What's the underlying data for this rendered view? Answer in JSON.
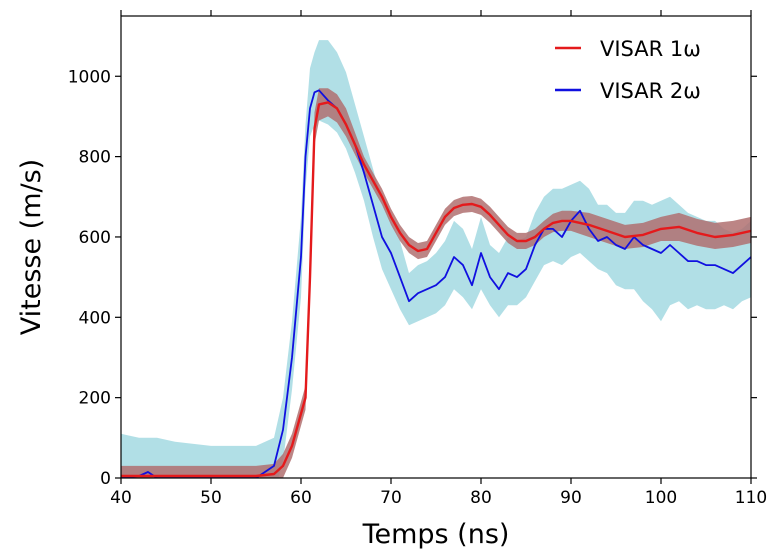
{
  "chart_data": {
    "type": "line",
    "title": "",
    "xlabel": "Temps (ns)",
    "ylabel": "Vitesse (m/s)",
    "xlim": [
      40,
      110
    ],
    "ylim": [
      0,
      1150
    ],
    "xticks": [
      40,
      50,
      60,
      70,
      80,
      90,
      100,
      110
    ],
    "yticks": [
      0,
      200,
      400,
      600,
      800,
      1000
    ],
    "grid": false,
    "legend_position": "top-right",
    "colors": {
      "visar1": "#e41a1c",
      "visar1_band": "#b07070",
      "visar2": "#1010e0",
      "visar2_band": "#a8dce3"
    },
    "series": [
      {
        "name": "VISAR 1ω",
        "color": "#e41a1c",
        "x": [
          40,
          45,
          50,
          55,
          57,
          58,
          59,
          60,
          60.5,
          61,
          61.5,
          62,
          63,
          64,
          65,
          66,
          67,
          68,
          69,
          70,
          71,
          72,
          73,
          74,
          75,
          76,
          77,
          78,
          79,
          80,
          81,
          82,
          83,
          84,
          85,
          86,
          87,
          88,
          89,
          90,
          92,
          94,
          96,
          98,
          100,
          102,
          104,
          106,
          108,
          110
        ],
        "y": [
          5,
          5,
          5,
          5,
          10,
          30,
          80,
          160,
          200,
          500,
          870,
          930,
          935,
          920,
          880,
          830,
          780,
          740,
          700,
          650,
          610,
          580,
          565,
          570,
          610,
          650,
          672,
          680,
          682,
          675,
          655,
          630,
          605,
          590,
          590,
          600,
          620,
          635,
          640,
          640,
          630,
          615,
          600,
          605,
          620,
          625,
          610,
          600,
          605,
          615
        ],
        "band_lower": [
          -20,
          -20,
          -20,
          -20,
          -15,
          0,
          50,
          130,
          170,
          460,
          830,
          890,
          900,
          885,
          850,
          805,
          760,
          720,
          680,
          630,
          590,
          560,
          545,
          550,
          590,
          630,
          652,
          660,
          662,
          655,
          635,
          610,
          585,
          570,
          570,
          580,
          600,
          612,
          615,
          615,
          600,
          585,
          570,
          575,
          590,
          590,
          578,
          570,
          575,
          585
        ],
        "band_upper": [
          30,
          30,
          30,
          30,
          35,
          60,
          110,
          190,
          230,
          540,
          910,
          970,
          970,
          955,
          920,
          860,
          800,
          760,
          720,
          670,
          630,
          600,
          585,
          590,
          630,
          670,
          692,
          700,
          702,
          695,
          675,
          650,
          625,
          610,
          610,
          620,
          640,
          658,
          665,
          665,
          660,
          645,
          630,
          635,
          650,
          660,
          645,
          635,
          640,
          650
        ]
      },
      {
        "name": "VISAR 2ω",
        "color": "#1010e0",
        "x": [
          40,
          42,
          43,
          44,
          46,
          50,
          55,
          57,
          58,
          59,
          60,
          60.5,
          61,
          61.5,
          62,
          63,
          64,
          65,
          66,
          67,
          68,
          69,
          70,
          71,
          72,
          73,
          74,
          75,
          76,
          77,
          78,
          79,
          80,
          81,
          82,
          83,
          84,
          85,
          86,
          87,
          88,
          89,
          90,
          91,
          92,
          93,
          94,
          95,
          96,
          97,
          98,
          99,
          100,
          101,
          102,
          103,
          104,
          105,
          106,
          107,
          108,
          109,
          110
        ],
        "y": [
          0,
          5,
          15,
          0,
          0,
          0,
          0,
          30,
          120,
          300,
          550,
          800,
          920,
          960,
          965,
          940,
          920,
          880,
          830,
          760,
          680,
          600,
          560,
          500,
          440,
          460,
          470,
          480,
          500,
          550,
          530,
          480,
          560,
          500,
          470,
          510,
          500,
          520,
          580,
          620,
          620,
          600,
          640,
          665,
          620,
          590,
          600,
          580,
          570,
          600,
          580,
          570,
          560,
          580,
          560,
          540,
          540,
          530,
          530,
          520,
          510,
          530,
          550
        ],
        "band_lower": [
          -60,
          -60,
          -60,
          -60,
          -60,
          -60,
          -60,
          -40,
          40,
          220,
          450,
          720,
          850,
          880,
          890,
          880,
          860,
          820,
          760,
          690,
          600,
          520,
          470,
          420,
          380,
          390,
          400,
          410,
          430,
          470,
          450,
          420,
          470,
          430,
          400,
          430,
          430,
          450,
          490,
          530,
          540,
          530,
          550,
          560,
          540,
          520,
          510,
          480,
          470,
          470,
          440,
          420,
          390,
          430,
          440,
          420,
          430,
          420,
          420,
          430,
          420,
          440,
          450
        ],
        "band_upper": [
          110,
          100,
          100,
          100,
          90,
          80,
          80,
          100,
          200,
          390,
          650,
          880,
          1020,
          1060,
          1090,
          1090,
          1060,
          1010,
          930,
          850,
          770,
          690,
          640,
          590,
          510,
          530,
          540,
          560,
          590,
          640,
          620,
          570,
          650,
          580,
          560,
          600,
          590,
          600,
          660,
          700,
          720,
          720,
          730,
          740,
          720,
          680,
          680,
          660,
          660,
          690,
          690,
          680,
          690,
          700,
          680,
          660,
          650,
          640,
          640,
          620,
          610,
          620,
          640
        ]
      }
    ]
  }
}
